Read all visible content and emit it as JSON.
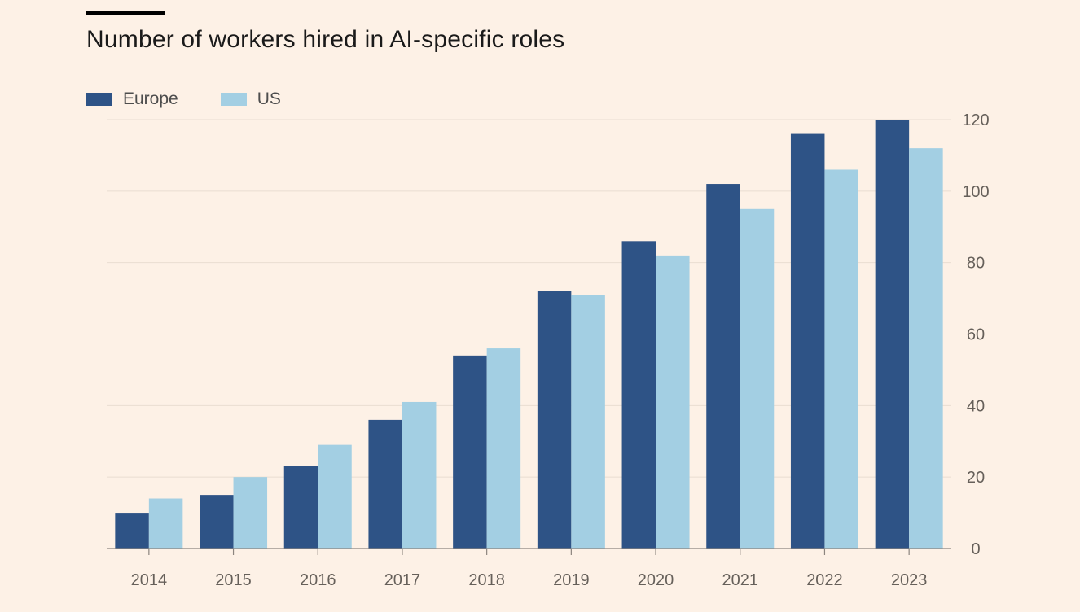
{
  "title": "Number of workers hired in AI-specific roles",
  "colors": {
    "background": "#fdf1e6",
    "europe": "#2e5386",
    "us": "#a3cfe3"
  },
  "legend": [
    {
      "name": "Europe",
      "color": "#2e5386"
    },
    {
      "name": "US",
      "color": "#a3cfe3"
    }
  ],
  "chart_data": {
    "type": "bar",
    "title": "Number of workers hired in AI-specific roles",
    "xlabel": "",
    "ylabel": "",
    "categories": [
      "2014",
      "2015",
      "2016",
      "2017",
      "2018",
      "2019",
      "2020",
      "2021",
      "2022",
      "2023"
    ],
    "series": [
      {
        "name": "Europe",
        "color": "#2e5386",
        "values": [
          10,
          15,
          23,
          36,
          54,
          72,
          86,
          102,
          116,
          120
        ]
      },
      {
        "name": "US",
        "color": "#a3cfe3",
        "values": [
          14,
          20,
          29,
          41,
          56,
          71,
          82,
          95,
          106,
          112
        ]
      }
    ],
    "ylim": [
      0,
      120
    ],
    "yticks": [
      0,
      20,
      40,
      60,
      80,
      100,
      120
    ],
    "y_axis_side": "right",
    "grid": true,
    "legend_position": "top-left"
  }
}
